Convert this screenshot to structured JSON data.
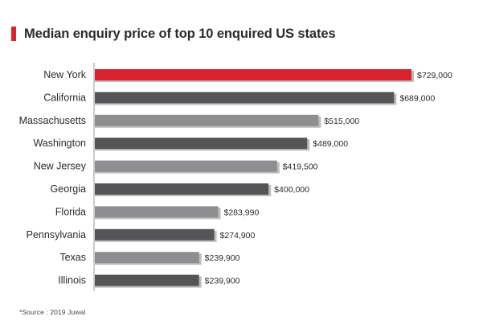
{
  "header": {
    "title": "Median enquiry price of top 10 enquired US states"
  },
  "footer": {
    "source": "*Source : 2019 Juwal"
  },
  "colors": {
    "highlight": "#d9232e",
    "dark_bar": "#555557",
    "light_bar": "#8e8e90",
    "shadow": "#bdbdbd",
    "axis": "#9a9a9a"
  },
  "chart_data": {
    "type": "bar",
    "orientation": "horizontal",
    "title": "Median enquiry price of top 10 enquired US states",
    "categories": [
      "New York",
      "California",
      "Massachusetts",
      "Washington",
      "New Jersey",
      "Georgia",
      "Florida",
      "Pennsylvania",
      "Texas",
      "Illinois"
    ],
    "values": [
      729000,
      689000,
      515000,
      489000,
      419500,
      400000,
      283990,
      274900,
      239900,
      239900
    ],
    "data_labels": [
      "$729,000",
      "$689,000",
      "$515,000",
      "$489,000",
      "$419,500",
      "$400,000",
      "$283,990",
      "$274,900",
      "$239,900",
      "$239,900"
    ],
    "bar_colors": [
      "highlight",
      "dark",
      "light",
      "dark",
      "light",
      "dark",
      "light",
      "dark",
      "light",
      "dark"
    ],
    "xlim": [
      0,
      729000
    ],
    "grid": false,
    "legend": "none"
  }
}
